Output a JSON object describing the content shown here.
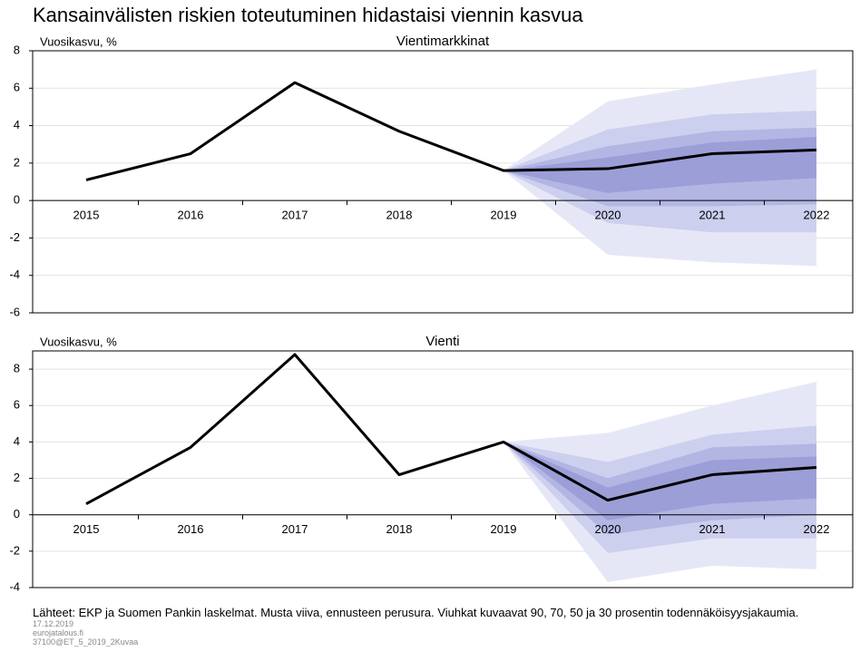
{
  "title": "Kansainvälisten riskien toteutuminen hidastaisi viennin kasvua",
  "chart_data": [
    {
      "type": "fan",
      "title": "Vientimarkkinat",
      "y_label": "Vuosikasvu, %",
      "categories": [
        "2015",
        "2016",
        "2017",
        "2018",
        "2019",
        "2020",
        "2021",
        "2022"
      ],
      "series": [
        {
          "color": "#000000",
          "values": [
            1.1,
            2.5,
            6.3,
            3.7,
            1.6,
            1.7,
            2.5,
            2.7
          ]
        }
      ],
      "bands": [
        {
          "color": "#e6e7f6",
          "lower": [
            null,
            null,
            null,
            null,
            1.6,
            -2.9,
            -3.3,
            -3.5
          ],
          "upper": [
            null,
            null,
            null,
            null,
            1.6,
            5.3,
            6.2,
            7.0
          ]
        },
        {
          "color": "#cdcfee",
          "lower": [
            null,
            null,
            null,
            null,
            1.6,
            -1.2,
            -1.7,
            -1.7
          ],
          "upper": [
            null,
            null,
            null,
            null,
            1.6,
            3.8,
            4.6,
            4.8
          ]
        },
        {
          "color": "#b3b5e3",
          "lower": [
            null,
            null,
            null,
            null,
            1.6,
            -0.3,
            -0.3,
            -0.2
          ],
          "upper": [
            null,
            null,
            null,
            null,
            1.6,
            2.9,
            3.7,
            3.9
          ]
        },
        {
          "color": "#9c9ed8",
          "lower": [
            null,
            null,
            null,
            null,
            1.6,
            0.4,
            0.9,
            1.2
          ],
          "upper": [
            null,
            null,
            null,
            null,
            1.6,
            2.3,
            3.1,
            3.4
          ]
        }
      ],
      "ylim": [
        -6,
        8
      ],
      "yticks": [
        -6,
        -4,
        -2,
        0,
        2,
        4,
        6,
        8
      ],
      "grid": true
    },
    {
      "type": "fan",
      "title": "Vienti",
      "y_label": "Vuosikasvu, %",
      "categories": [
        "2015",
        "2016",
        "2017",
        "2018",
        "2019",
        "2020",
        "2021",
        "2022"
      ],
      "series": [
        {
          "color": "#000000",
          "values": [
            0.6,
            3.7,
            8.8,
            2.2,
            4.0,
            0.8,
            2.2,
            2.6
          ]
        }
      ],
      "bands": [
        {
          "color": "#e6e7f6",
          "lower": [
            null,
            null,
            null,
            null,
            4.0,
            -3.7,
            -2.8,
            -3.0
          ],
          "upper": [
            null,
            null,
            null,
            null,
            4.0,
            4.5,
            6.0,
            7.3
          ]
        },
        {
          "color": "#cdcfee",
          "lower": [
            null,
            null,
            null,
            null,
            4.0,
            -2.1,
            -1.3,
            -1.3
          ],
          "upper": [
            null,
            null,
            null,
            null,
            4.0,
            2.9,
            4.4,
            4.9
          ]
        },
        {
          "color": "#b3b5e3",
          "lower": [
            null,
            null,
            null,
            null,
            4.0,
            -1.1,
            -0.3,
            0.0
          ],
          "upper": [
            null,
            null,
            null,
            null,
            4.0,
            2.0,
            3.7,
            3.9
          ]
        },
        {
          "color": "#9c9ed8",
          "lower": [
            null,
            null,
            null,
            null,
            4.0,
            -0.3,
            0.6,
            0.9
          ],
          "upper": [
            null,
            null,
            null,
            null,
            4.0,
            1.5,
            3.0,
            3.2
          ]
        }
      ],
      "ylim": [
        -4,
        9
      ],
      "yticks": [
        -4,
        -2,
        0,
        2,
        4,
        6,
        8
      ],
      "grid": true
    }
  ],
  "footnote": "Lähteet: EKP ja Suomen Pankin laskelmat. Musta viiva, ennusteen perusura. Viuhkat kuvaavat 90, 70, 50 ja 30 prosentin todennäköisyysjakaumia.",
  "meta": [
    "17.12.2019",
    "eurojatalous.fi",
    "37100@ET_5_2019_2Kuvaa"
  ]
}
